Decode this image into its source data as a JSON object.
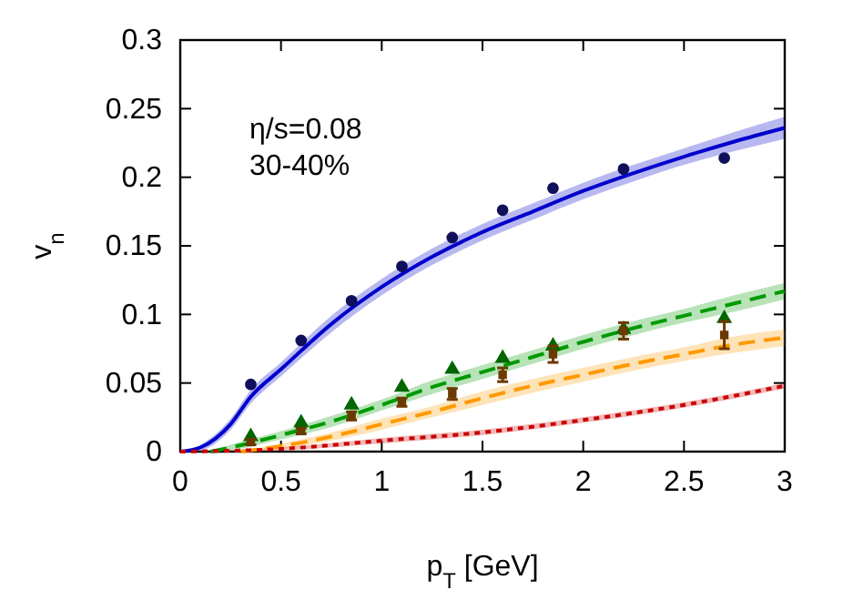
{
  "chart_data": {
    "type": "line",
    "xlabel": "p$_{T}$ [GeV]",
    "ylabel": "v$_{n}$",
    "xlim": [
      0,
      3
    ],
    "ylim": [
      0,
      0.3
    ],
    "xticks": [
      0,
      0.5,
      1,
      1.5,
      2,
      2.5,
      3
    ],
    "yticks": [
      0,
      0.05,
      0.1,
      0.15,
      0.2,
      0.25,
      0.3
    ],
    "grid": false,
    "annotations": [
      "η/s=0.08",
      "30-40%"
    ],
    "series": [
      {
        "line_style": "solid",
        "color": "#0000cc",
        "x": [
          0,
          0.1,
          0.25,
          0.35,
          0.5,
          0.75,
          1,
          1.25,
          1.5,
          1.75,
          2,
          2.25,
          2.5,
          2.75,
          3
        ],
        "values": [
          0,
          0.003,
          0.02,
          0.04,
          0.06,
          0.093,
          0.12,
          0.142,
          0.16,
          0.175,
          0.19,
          0.203,
          0.215,
          0.226,
          0.236
        ],
        "lower": [
          0,
          0.001,
          0.016,
          0.035,
          0.055,
          0.087,
          0.114,
          0.136,
          0.154,
          0.169,
          0.184,
          0.197,
          0.209,
          0.219,
          0.228
        ],
        "upper": [
          0,
          0.005,
          0.024,
          0.045,
          0.065,
          0.099,
          0.126,
          0.148,
          0.166,
          0.181,
          0.196,
          0.209,
          0.221,
          0.233,
          0.244
        ]
      },
      {
        "line_style": "dashed",
        "color": "#009900",
        "x": [
          0.15,
          0.25,
          0.5,
          0.75,
          1,
          1.25,
          1.5,
          1.75,
          2,
          2.25,
          2.5,
          2.75,
          3
        ],
        "values": [
          0,
          0.003,
          0.012,
          0.022,
          0.034,
          0.047,
          0.058,
          0.069,
          0.08,
          0.09,
          0.099,
          0.108,
          0.117
        ],
        "lower": [
          0,
          0.001,
          0.009,
          0.018,
          0.03,
          0.042,
          0.053,
          0.064,
          0.075,
          0.085,
          0.094,
          0.102,
          0.111
        ],
        "upper": [
          0,
          0.005,
          0.015,
          0.026,
          0.038,
          0.052,
          0.063,
          0.074,
          0.085,
          0.095,
          0.104,
          0.114,
          0.123
        ]
      },
      {
        "line_style": "dashed",
        "color": "#ff9900",
        "x": [
          0.3,
          0.5,
          0.75,
          1,
          1.25,
          1.5,
          1.75,
          2,
          2.25,
          2.5,
          2.75,
          3
        ],
        "values": [
          0,
          0.004,
          0.011,
          0.02,
          0.029,
          0.039,
          0.048,
          0.056,
          0.064,
          0.071,
          0.078,
          0.083
        ],
        "lower": [
          0,
          0.002,
          0.008,
          0.016,
          0.025,
          0.034,
          0.043,
          0.051,
          0.059,
          0.066,
          0.072,
          0.077
        ],
        "upper": [
          0,
          0.006,
          0.014,
          0.024,
          0.033,
          0.044,
          0.053,
          0.061,
          0.069,
          0.076,
          0.084,
          0.089
        ]
      },
      {
        "line_style": "dotted",
        "color": "#cc0000",
        "x": [
          0,
          0.5,
          1,
          1.5,
          2,
          2.5,
          3
        ],
        "values": [
          0,
          0.002,
          0.008,
          0.014,
          0.023,
          0.034,
          0.048
        ],
        "lower": [
          0,
          0.001,
          0.006,
          0.012,
          0.021,
          0.032,
          0.046
        ],
        "upper": [
          0,
          0.003,
          0.01,
          0.016,
          0.025,
          0.036,
          0.05
        ]
      },
      {
        "type": "scatter",
        "marker": "circle",
        "color": "#10105a",
        "x": [
          0.35,
          0.6,
          0.85,
          1.1,
          1.35,
          1.6,
          1.85,
          2.2,
          2.7
        ],
        "values": [
          0.049,
          0.081,
          0.11,
          0.135,
          0.156,
          0.176,
          0.192,
          0.206,
          0.214
        ]
      },
      {
        "type": "scatter",
        "marker": "triangle",
        "color": "#006600",
        "x": [
          0.35,
          0.6,
          0.85,
          1.1,
          1.35,
          1.6,
          1.85,
          2.2,
          2.7
        ],
        "values": [
          0.011,
          0.021,
          0.034,
          0.047,
          0.06,
          0.068,
          0.077,
          0.089,
          0.097
        ]
      },
      {
        "type": "scatter",
        "marker": "square",
        "color": "#6b3a00",
        "x": [
          0.35,
          0.6,
          0.85,
          1.1,
          1.35,
          1.6,
          1.85,
          2.2,
          2.7
        ],
        "values": [
          0.007,
          0.015,
          0.026,
          0.036,
          0.042,
          0.056,
          0.071,
          0.088,
          0.085
        ],
        "errors": [
          0.002,
          0.002,
          0.003,
          0.003,
          0.004,
          0.005,
          0.006,
          0.006,
          0.01
        ]
      }
    ]
  }
}
